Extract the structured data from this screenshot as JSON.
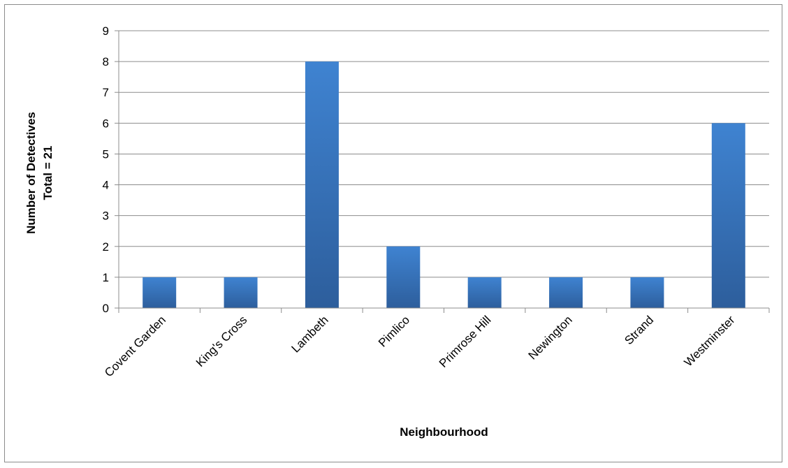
{
  "chart_data": {
    "type": "bar",
    "categories": [
      "Covent Garden",
      "King's Cross",
      "Lambeth",
      "Pimlico",
      "Primrose Hill",
      "Newington",
      "Strand",
      "Westminster"
    ],
    "values": [
      1,
      1,
      8,
      2,
      1,
      1,
      1,
      6
    ],
    "title": "",
    "xlabel": "Neighbourhood",
    "ylabel_lines": [
      "Number of Detectives",
      "Total = 21"
    ],
    "ylim": [
      0,
      9
    ],
    "yticks": [
      0,
      1,
      2,
      3,
      4,
      5,
      6,
      7,
      8,
      9
    ],
    "grid": true,
    "legend": "none",
    "colors": {
      "bar_top": "#3f83d1",
      "bar_bottom": "#2d5e9c",
      "grid": "#8c8c8c",
      "axis": "#8c8c8c",
      "frame": "#8c8c8c"
    }
  }
}
